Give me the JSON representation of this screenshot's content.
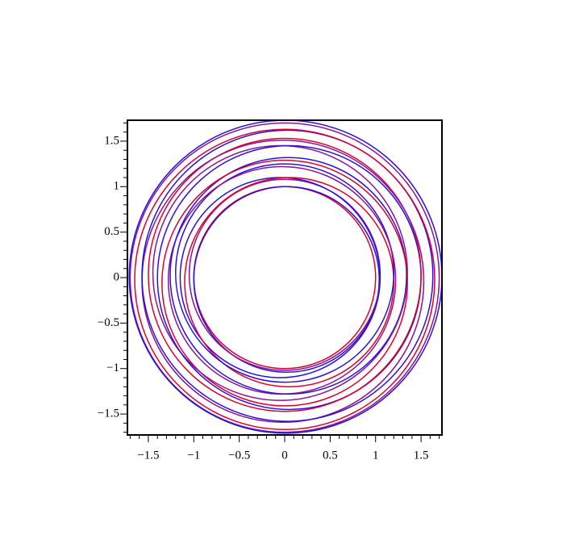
{
  "chart_data": {
    "type": "circles",
    "xlim": [
      -1.73,
      1.73
    ],
    "ylim": [
      -1.73,
      1.73
    ],
    "xticks": [
      {
        "value": -1.5,
        "label": "−1.5"
      },
      {
        "value": -1,
        "label": "−1"
      },
      {
        "value": -0.5,
        "label": "−0.5"
      },
      0,
      0.5,
      1,
      1.5
    ],
    "yticks": [
      {
        "value": -1.5,
        "label": "−1.5"
      },
      {
        "value": -1,
        "label": "−1"
      },
      {
        "value": -0.5,
        "label": "−0.5"
      },
      0,
      0.5,
      1,
      1.5
    ],
    "minor_ticks": [
      -1.7,
      -1.6,
      -1.4,
      -1.3,
      -1.2,
      -1.1,
      -0.9,
      -0.8,
      -0.7,
      -0.6,
      -0.4,
      -0.3,
      -0.2,
      -0.1,
      0.1,
      0.2,
      0.3,
      0.4,
      0.6,
      0.7,
      0.8,
      0.9,
      1.1,
      1.2,
      1.3,
      1.4,
      1.6,
      1.7
    ],
    "curves": [
      {
        "x": 0,
        "y": 0,
        "r": 1.0,
        "color": "#e0002a"
      },
      {
        "x": 0.02,
        "y": -0.02,
        "r": 1.02,
        "color": "#2a10e0"
      },
      {
        "x": 0,
        "y": 0.03,
        "r": 1.05,
        "color": "#8a1490"
      },
      {
        "x": -0.05,
        "y": 0,
        "r": 1.1,
        "color": "#2a10e0"
      },
      {
        "x": 0.05,
        "y": -0.05,
        "r": 1.15,
        "color": "#e0002a"
      },
      {
        "x": 0,
        "y": 0.05,
        "r": 1.2,
        "color": "#2a10e0"
      },
      {
        "x": -0.03,
        "y": -0.03,
        "r": 1.25,
        "color": "#8a1490"
      },
      {
        "x": 0.04,
        "y": 0.02,
        "r": 1.3,
        "color": "#2a10e0"
      },
      {
        "x": 0,
        "y": -0.06,
        "r": 1.35,
        "color": "#e0002a"
      },
      {
        "x": -0.05,
        "y": 0.05,
        "r": 1.4,
        "color": "#8a1490"
      },
      {
        "x": 0.05,
        "y": 0,
        "r": 1.45,
        "color": "#2a10e0"
      },
      {
        "x": 0,
        "y": 0.03,
        "r": 1.5,
        "color": "#e0002a"
      },
      {
        "x": -0.02,
        "y": -0.04,
        "r": 1.55,
        "color": "#8a1490"
      },
      {
        "x": 0.03,
        "y": 0.02,
        "r": 1.6,
        "color": "#2a10e0"
      },
      {
        "x": 0,
        "y": -0.02,
        "r": 1.65,
        "color": "#e0002a"
      },
      {
        "x": 0,
        "y": 0,
        "r": 1.7,
        "color": "#8a1490"
      },
      {
        "x": 0.01,
        "y": 0.01,
        "r": 1.72,
        "color": "#2a10e0"
      }
    ]
  }
}
